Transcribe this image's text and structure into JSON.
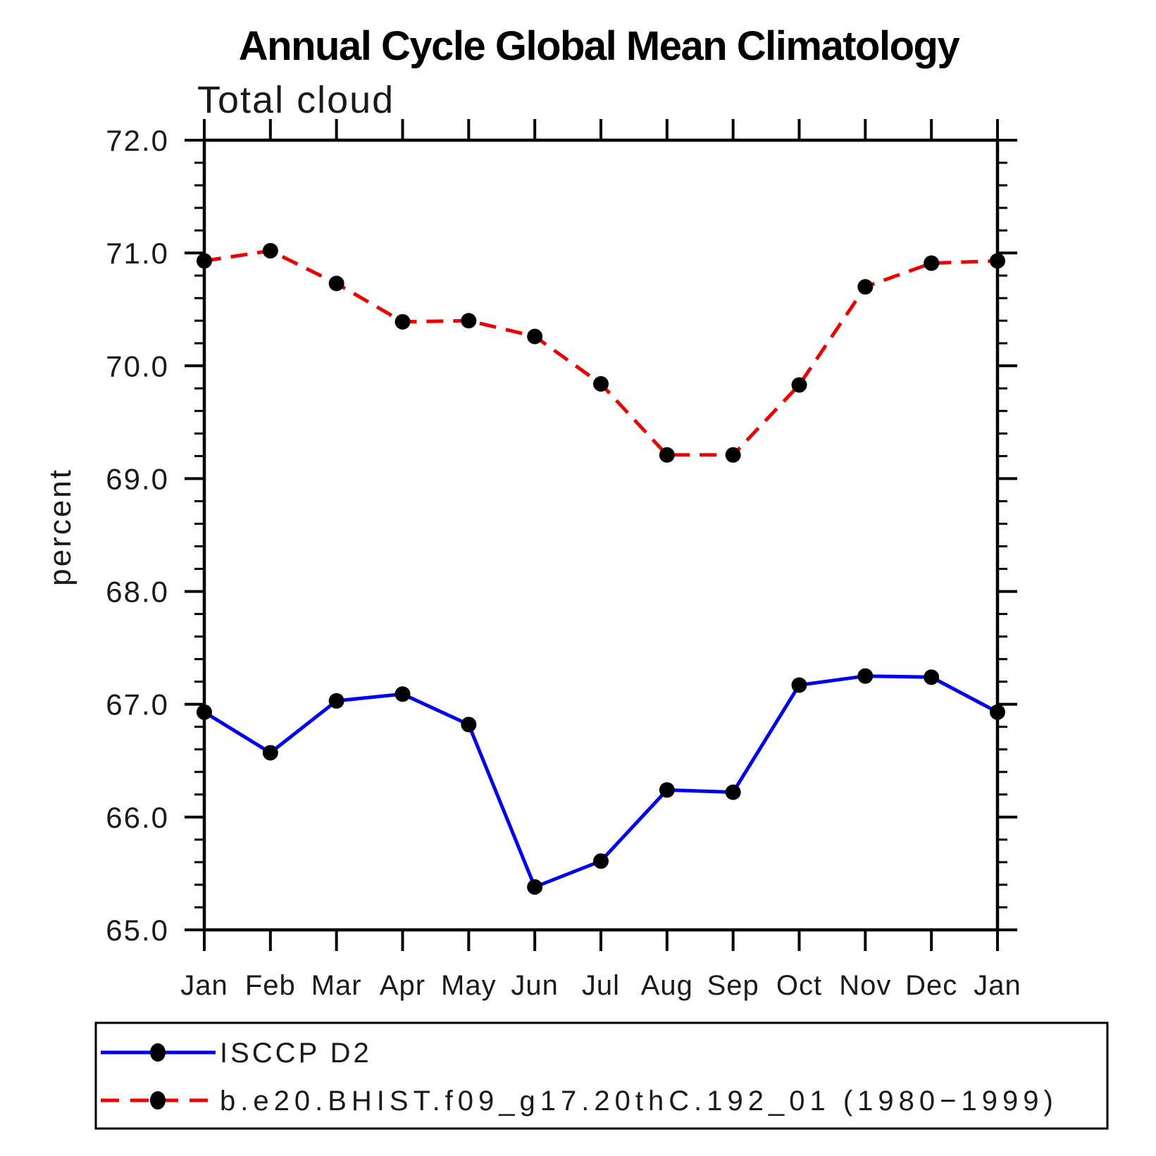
{
  "page": {
    "background": "#ffffff"
  },
  "header": {
    "title": "Annual Cycle Global Mean Climatology",
    "subtitle": "Total cloud"
  },
  "chart_data": {
    "type": "line",
    "title": "Annual Cycle Global Mean Climatology",
    "subtitle": "Total cloud",
    "xlabel": "",
    "ylabel": "percent",
    "categories": [
      "Jan",
      "Feb",
      "Mar",
      "Apr",
      "May",
      "Jun",
      "Jul",
      "Aug",
      "Sep",
      "Oct",
      "Nov",
      "Dec",
      "Jan"
    ],
    "series": [
      {
        "name": "ISCCP D2",
        "color": "#0000ee",
        "line_style": "solid",
        "line_width": 5,
        "marker": "filled-circle",
        "marker_color": "#000000",
        "values": [
          66.93,
          66.57,
          67.03,
          67.09,
          66.82,
          65.38,
          65.61,
          66.24,
          66.22,
          67.17,
          67.25,
          67.24,
          66.93
        ]
      },
      {
        "name": "b.e20.BHIST.f09_g17.20thC.192_01 (1980−1999)",
        "color": "#ee0000",
        "line_style": "dashed",
        "line_width": 5,
        "marker": "filled-circle",
        "marker_color": "#000000",
        "values": [
          70.93,
          71.02,
          70.73,
          70.39,
          70.4,
          70.26,
          69.84,
          69.21,
          69.21,
          69.83,
          70.7,
          70.91,
          70.93
        ]
      }
    ],
    "ylim": [
      65.0,
      72.0
    ],
    "ytick_interval": 1.0,
    "ytick_labels": [
      "65.0",
      "66.0",
      "67.0",
      "68.0",
      "69.0",
      "70.0",
      "71.0",
      "72.0"
    ],
    "yminor_interval": 0.2,
    "grid": false,
    "legend_position": "bottom-left-box",
    "axis_color": "#000000"
  }
}
